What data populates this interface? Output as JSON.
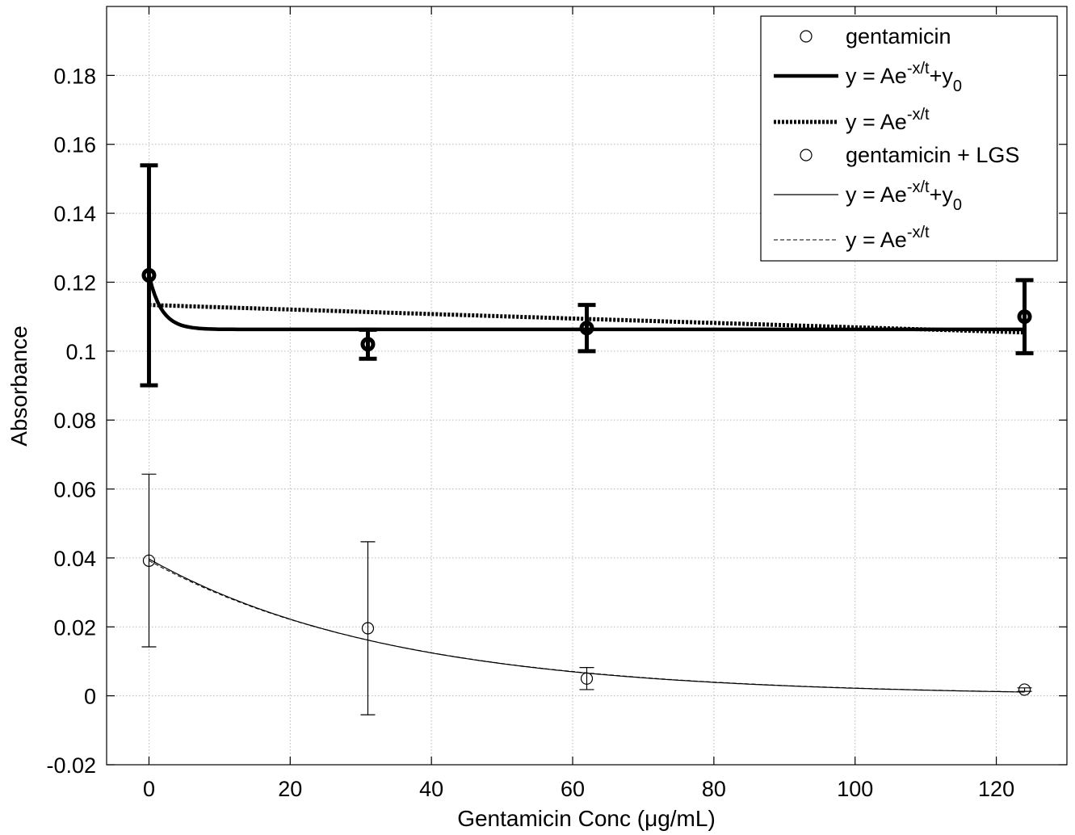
{
  "chart_data": {
    "type": "scatter",
    "xlabel": "Gentamicin Conc (μg/mL)",
    "ylabel": "Absorbance",
    "xlim": [
      -6,
      130
    ],
    "ylim": [
      -0.02,
      0.2
    ],
    "xticks": [
      0,
      20,
      40,
      60,
      80,
      100,
      120
    ],
    "xtick_labels": [
      "0",
      "20",
      "40",
      "60",
      "80",
      "100",
      "120"
    ],
    "yticks": [
      -0.02,
      0,
      0.02,
      0.04,
      0.06,
      0.08,
      0.1,
      0.12,
      0.14,
      0.16,
      0.18
    ],
    "ytick_labels": [
      "-0.02",
      "0",
      "0.02",
      "0.04",
      "0.06",
      "0.08",
      "0.1",
      "0.12",
      "0.14",
      "0.16",
      "0.18"
    ],
    "grid": true,
    "legend_position": "top-right",
    "legend": [
      {
        "prefix": "gentamicin",
        "sup": "",
        "suffix": "",
        "sub": "",
        "style": "marker-bold"
      },
      {
        "prefix": "y = Ae",
        "sup": "-x/t",
        "suffix": "+y",
        "sub": "0",
        "style": "solid-thick"
      },
      {
        "prefix": "y = Ae",
        "sup": "-x/t",
        "suffix": "",
        "sub": "",
        "style": "dotted-thick"
      },
      {
        "prefix": "gentamicin + LGS",
        "sup": "",
        "suffix": "",
        "sub": "",
        "style": "marker-thin"
      },
      {
        "prefix": "y = Ae",
        "sup": "-x/t",
        "suffix": "+y",
        "sub": "0",
        "style": "solid-thin"
      },
      {
        "prefix": "y = Ae",
        "sup": "-x/t",
        "suffix": "",
        "sub": "",
        "style": "dashed-thin"
      }
    ],
    "series": [
      {
        "name": "gentamicin",
        "x": [
          0,
          31,
          62,
          124
        ],
        "y": [
          0.122,
          0.102,
          0.1067,
          0.11
        ],
        "err_low": [
          0.0901,
          0.0978,
          0.1,
          0.0994
        ],
        "err_high": [
          0.1539,
          0.1062,
          0.1134,
          0.1206
        ],
        "style": "marker-bold"
      },
      {
        "name": "gentamicin + LGS",
        "x": [
          0,
          31,
          62,
          124
        ],
        "y": [
          0.0392,
          0.0196,
          0.005,
          0.0018
        ],
        "err_low": [
          0.0142,
          -0.0055,
          0.0018,
          0.0013
        ],
        "err_high": [
          0.0643,
          0.0447,
          0.0082,
          0.0023
        ],
        "style": "marker-thin"
      }
    ],
    "fits": [
      {
        "label": "y = Ae^(-x/t)+y0",
        "for": "gentamicin",
        "A": 0.0157,
        "t": 1.8,
        "y0": 0.1063,
        "style": "solid-thick"
      },
      {
        "label": "y = Ae^(-x/t)",
        "for": "gentamicin",
        "A": 0.1134,
        "t": 1700,
        "y0": 0,
        "style": "dotted-thick"
      },
      {
        "label": "y = Ae^(-x/t)+y0",
        "for": "gentamicin + LGS",
        "A": 0.0397,
        "t": 34.5,
        "y0": 0,
        "style": "solid-thin"
      },
      {
        "label": "y = Ae^(-x/t)",
        "for": "gentamicin + LGS",
        "A": 0.0392,
        "t": 35,
        "y0": 0,
        "style": "dashed-thin"
      }
    ]
  }
}
